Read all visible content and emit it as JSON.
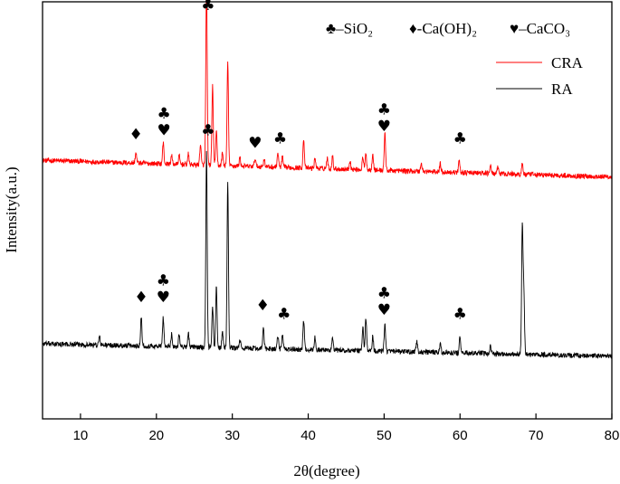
{
  "chart_data": {
    "type": "line",
    "xlabel": "2θ(degree)",
    "ylabel": "Intensity(a.u.)",
    "xlim": [
      5,
      80
    ],
    "ylim": [
      0,
      100
    ],
    "xticks": [
      "10",
      "20",
      "30",
      "40",
      "50",
      "60",
      "70",
      "80"
    ],
    "yticks_shown": false,
    "legend": {
      "placement": "top-right",
      "phase_key": [
        {
          "symbol": "♣",
          "text": "–SiO₂"
        },
        {
          "symbol": "♦",
          "text": "-Ca(OH)₂"
        },
        {
          "symbol": "♥",
          "text": "–CaCO₃"
        }
      ],
      "entries": [
        {
          "name": "CRA",
          "color": "#ff0000"
        },
        {
          "name": "RA",
          "color": "#000000"
        }
      ]
    },
    "series": [
      {
        "name": "CRA",
        "color": "#ff0000",
        "baseline_start": 62,
        "baseline_end": 58,
        "noise": 0.6,
        "peaks": [
          [
            17.3,
            2.5
          ],
          [
            20.9,
            5
          ],
          [
            22.0,
            2
          ],
          [
            23.0,
            2
          ],
          [
            24.2,
            2.5
          ],
          [
            25.8,
            5
          ],
          [
            26.6,
            44
          ],
          [
            27.4,
            19
          ],
          [
            27.9,
            8
          ],
          [
            28.7,
            3
          ],
          [
            29.4,
            25
          ],
          [
            31.0,
            2
          ],
          [
            33.0,
            2
          ],
          [
            34.2,
            2
          ],
          [
            36.0,
            3.5
          ],
          [
            36.6,
            2.5
          ],
          [
            39.4,
            7
          ],
          [
            40.9,
            2.5
          ],
          [
            42.5,
            2.5
          ],
          [
            43.2,
            3
          ],
          [
            45.5,
            2
          ],
          [
            47.2,
            3
          ],
          [
            47.6,
            4
          ],
          [
            48.5,
            4
          ],
          [
            50.1,
            9
          ],
          [
            54.9,
            2
          ],
          [
            57.4,
            2
          ],
          [
            59.9,
            3
          ],
          [
            64.0,
            2
          ],
          [
            65.0,
            1.5
          ],
          [
            68.2,
            2.5
          ]
        ]
      },
      {
        "name": "RA",
        "color": "#000000",
        "baseline_start": 18,
        "baseline_end": 15,
        "noise": 0.6,
        "peaks": [
          [
            12.5,
            2
          ],
          [
            18.0,
            7
          ],
          [
            20.9,
            7
          ],
          [
            22.0,
            3
          ],
          [
            23.0,
            3
          ],
          [
            24.2,
            3.5
          ],
          [
            26.6,
            47
          ],
          [
            27.4,
            10
          ],
          [
            27.9,
            15
          ],
          [
            28.7,
            4
          ],
          [
            29.4,
            40
          ],
          [
            31.0,
            2
          ],
          [
            34.1,
            5
          ],
          [
            36.0,
            3
          ],
          [
            36.6,
            3.5
          ],
          [
            39.4,
            7
          ],
          [
            40.9,
            3
          ],
          [
            43.2,
            3
          ],
          [
            47.2,
            5.5
          ],
          [
            47.6,
            8
          ],
          [
            48.5,
            3.5
          ],
          [
            50.1,
            7
          ],
          [
            54.3,
            2.5
          ],
          [
            57.4,
            2
          ],
          [
            60.0,
            4
          ],
          [
            64.0,
            2
          ],
          [
            68.2,
            30
          ],
          [
            68.4,
            15
          ]
        ]
      }
    ],
    "annotations": [
      {
        "text": "♣",
        "x": 26.8,
        "y": 98
      },
      {
        "text": "♦",
        "x": 17.3,
        "y": 67
      },
      {
        "text": "♣",
        "x": 21.0,
        "y": 72
      },
      {
        "text": "♥",
        "x": 21.0,
        "y": 68
      },
      {
        "text": "♥",
        "x": 33.0,
        "y": 65
      },
      {
        "text": "♣",
        "x": 36.3,
        "y": 66
      },
      {
        "text": "♣",
        "x": 50.0,
        "y": 73
      },
      {
        "text": "♥",
        "x": 50.0,
        "y": 69
      },
      {
        "text": "♣",
        "x": 60.0,
        "y": 66
      },
      {
        "text": "♣",
        "x": 26.8,
        "y": 68
      },
      {
        "text": "♦",
        "x": 18.0,
        "y": 28
      },
      {
        "text": "♣",
        "x": 20.9,
        "y": 32
      },
      {
        "text": "♥",
        "x": 20.9,
        "y": 28
      },
      {
        "text": "♦",
        "x": 34.0,
        "y": 26
      },
      {
        "text": "♣",
        "x": 36.8,
        "y": 24
      },
      {
        "text": "♣",
        "x": 50.0,
        "y": 29
      },
      {
        "text": "♥",
        "x": 50.0,
        "y": 25
      },
      {
        "text": "♣",
        "x": 60.0,
        "y": 24
      }
    ]
  }
}
